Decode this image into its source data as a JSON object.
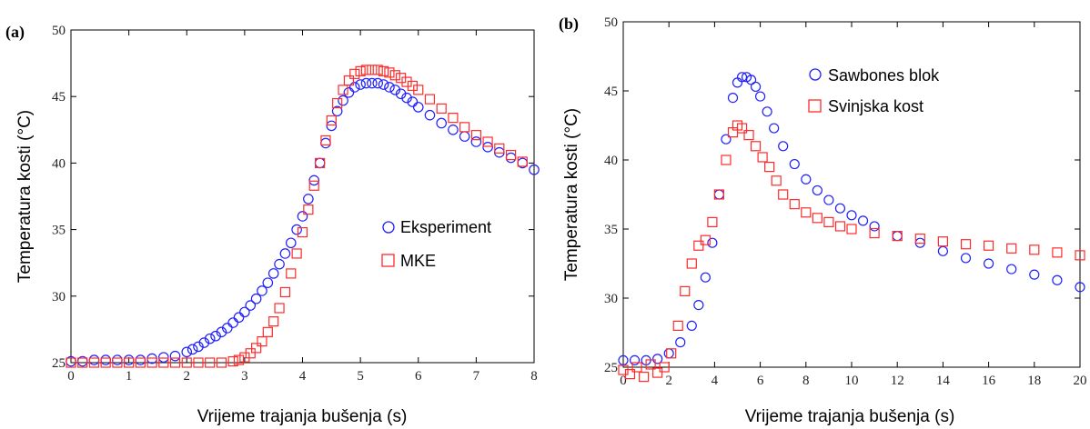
{
  "colors": {
    "series1": "#1f1fff",
    "series2": "#ff2a2a"
  },
  "chart_data": [
    {
      "type": "scatter",
      "panel_label": "(a)",
      "xlabel": "Vrijeme trajanja bušenja (s)",
      "ylabel": "Temperatura kosti (°C)",
      "xlim": [
        0,
        8
      ],
      "ylim": [
        25,
        50
      ],
      "xticks": [
        "0",
        "1",
        "2",
        "3",
        "4",
        "5",
        "6",
        "7",
        "8"
      ],
      "yticks": [
        "25",
        "30",
        "35",
        "40",
        "45",
        "50"
      ],
      "legend_position": "center-right",
      "series": [
        {
          "name": "Eksperiment",
          "marker": "circle",
          "color": "#1f1fff",
          "x": [
            0.0,
            0.2,
            0.4,
            0.6,
            0.8,
            1.0,
            1.2,
            1.4,
            1.6,
            1.8,
            2.0,
            2.1,
            2.2,
            2.3,
            2.4,
            2.5,
            2.6,
            2.7,
            2.8,
            2.9,
            3.0,
            3.1,
            3.2,
            3.3,
            3.4,
            3.5,
            3.6,
            3.7,
            3.8,
            3.9,
            4.0,
            4.1,
            4.2,
            4.3,
            4.4,
            4.5,
            4.6,
            4.7,
            4.8,
            4.9,
            5.0,
            5.1,
            5.2,
            5.3,
            5.4,
            5.5,
            5.6,
            5.7,
            5.8,
            5.9,
            6.0,
            6.2,
            6.4,
            6.6,
            6.8,
            7.0,
            7.2,
            7.4,
            7.6,
            7.8,
            8.0
          ],
          "y": [
            25.1,
            25.1,
            25.2,
            25.2,
            25.2,
            25.2,
            25.2,
            25.3,
            25.4,
            25.5,
            25.8,
            26.0,
            26.2,
            26.5,
            26.8,
            27.0,
            27.3,
            27.6,
            28.0,
            28.4,
            28.8,
            29.3,
            29.8,
            30.4,
            31.0,
            31.7,
            32.4,
            33.2,
            34.0,
            35.0,
            36.0,
            37.3,
            38.7,
            40.0,
            41.5,
            42.8,
            43.9,
            44.7,
            45.3,
            45.7,
            45.9,
            46.0,
            46.0,
            46.0,
            45.9,
            45.7,
            45.5,
            45.2,
            44.9,
            44.6,
            44.2,
            43.6,
            43.0,
            42.5,
            42.0,
            41.6,
            41.2,
            40.8,
            40.4,
            40.0,
            39.5
          ]
        },
        {
          "name": "MKE",
          "marker": "square",
          "color": "#ff2a2a",
          "x": [
            0.0,
            0.2,
            0.4,
            0.6,
            0.8,
            1.0,
            1.2,
            1.4,
            1.6,
            1.8,
            2.0,
            2.2,
            2.4,
            2.6,
            2.8,
            2.9,
            3.0,
            3.1,
            3.2,
            3.3,
            3.4,
            3.5,
            3.6,
            3.7,
            3.8,
            3.9,
            4.0,
            4.1,
            4.2,
            4.3,
            4.4,
            4.5,
            4.6,
            4.7,
            4.8,
            4.9,
            5.0,
            5.1,
            5.2,
            5.3,
            5.4,
            5.5,
            5.6,
            5.7,
            5.8,
            5.9,
            6.0,
            6.2,
            6.4,
            6.6,
            6.8,
            7.0,
            7.2,
            7.4,
            7.6,
            7.8
          ],
          "y": [
            25.0,
            25.0,
            25.0,
            25.0,
            25.0,
            25.0,
            25.0,
            25.0,
            25.0,
            25.0,
            25.0,
            25.0,
            25.0,
            25.0,
            25.1,
            25.2,
            25.4,
            25.7,
            26.1,
            26.6,
            27.3,
            28.1,
            29.1,
            30.3,
            31.7,
            33.2,
            34.8,
            36.5,
            38.3,
            40.0,
            41.7,
            43.2,
            44.5,
            45.5,
            46.2,
            46.7,
            46.9,
            47.0,
            47.0,
            47.0,
            46.9,
            46.8,
            46.6,
            46.4,
            46.1,
            45.8,
            45.5,
            44.8,
            44.1,
            43.4,
            42.7,
            42.1,
            41.6,
            41.1,
            40.6,
            40.1
          ]
        }
      ]
    },
    {
      "type": "scatter",
      "panel_label": "(b)",
      "xlabel": "Vrijeme trajanja bušenja (s)",
      "ylabel": "Temperatura kosti (°C)",
      "xlim": [
        0,
        20
      ],
      "ylim": [
        25,
        50
      ],
      "xticks": [
        "0",
        "2",
        "4",
        "6",
        "8",
        "10",
        "12",
        "14",
        "16",
        "18",
        "20"
      ],
      "yticks": [
        "25",
        "30",
        "35",
        "40",
        "45",
        "50"
      ],
      "legend_position": "top-right",
      "series": [
        {
          "name": "Sawbones blok",
          "marker": "circle",
          "color": "#1f1fff",
          "x": [
            0.0,
            0.5,
            1.0,
            1.5,
            2.0,
            2.5,
            3.0,
            3.3,
            3.6,
            3.9,
            4.2,
            4.5,
            4.8,
            5.0,
            5.2,
            5.4,
            5.6,
            5.8,
            6.0,
            6.3,
            6.6,
            7.0,
            7.5,
            8.0,
            8.5,
            9.0,
            9.5,
            10.0,
            10.5,
            11.0,
            12.0,
            13.0,
            14.0,
            15.0,
            16.0,
            17.0,
            18.0,
            19.0,
            20.0
          ],
          "y": [
            25.5,
            25.5,
            25.5,
            25.6,
            26.0,
            26.8,
            28.0,
            29.5,
            31.5,
            34.0,
            37.5,
            41.5,
            44.5,
            45.6,
            46.0,
            46.0,
            45.8,
            45.3,
            44.6,
            43.5,
            42.3,
            41.0,
            39.7,
            38.6,
            37.8,
            37.1,
            36.5,
            36.0,
            35.6,
            35.2,
            34.5,
            34.0,
            33.4,
            32.9,
            32.5,
            32.1,
            31.7,
            31.3,
            30.8
          ]
        },
        {
          "name": "Svinjska kost",
          "marker": "square",
          "color": "#ff2a2a",
          "x": [
            0.0,
            0.3,
            0.6,
            0.9,
            1.2,
            1.5,
            1.8,
            2.1,
            2.4,
            2.7,
            3.0,
            3.3,
            3.6,
            3.9,
            4.2,
            4.5,
            4.8,
            5.0,
            5.2,
            5.5,
            5.8,
            6.1,
            6.4,
            6.7,
            7.0,
            7.5,
            8.0,
            8.5,
            9.0,
            9.5,
            10.0,
            11.0,
            12.0,
            13.0,
            14.0,
            15.0,
            16.0,
            17.0,
            18.0,
            19.0,
            20.0
          ],
          "y": [
            24.8,
            24.5,
            25.0,
            24.3,
            25.2,
            24.6,
            25.0,
            26.0,
            28.0,
            30.5,
            32.5,
            33.8,
            34.2,
            35.5,
            37.5,
            40.0,
            42.0,
            42.5,
            42.3,
            41.8,
            41.0,
            40.2,
            39.5,
            38.5,
            37.5,
            36.8,
            36.2,
            35.8,
            35.5,
            35.2,
            35.0,
            34.7,
            34.5,
            34.3,
            34.1,
            33.9,
            33.8,
            33.6,
            33.5,
            33.3,
            33.1
          ]
        }
      ]
    }
  ]
}
